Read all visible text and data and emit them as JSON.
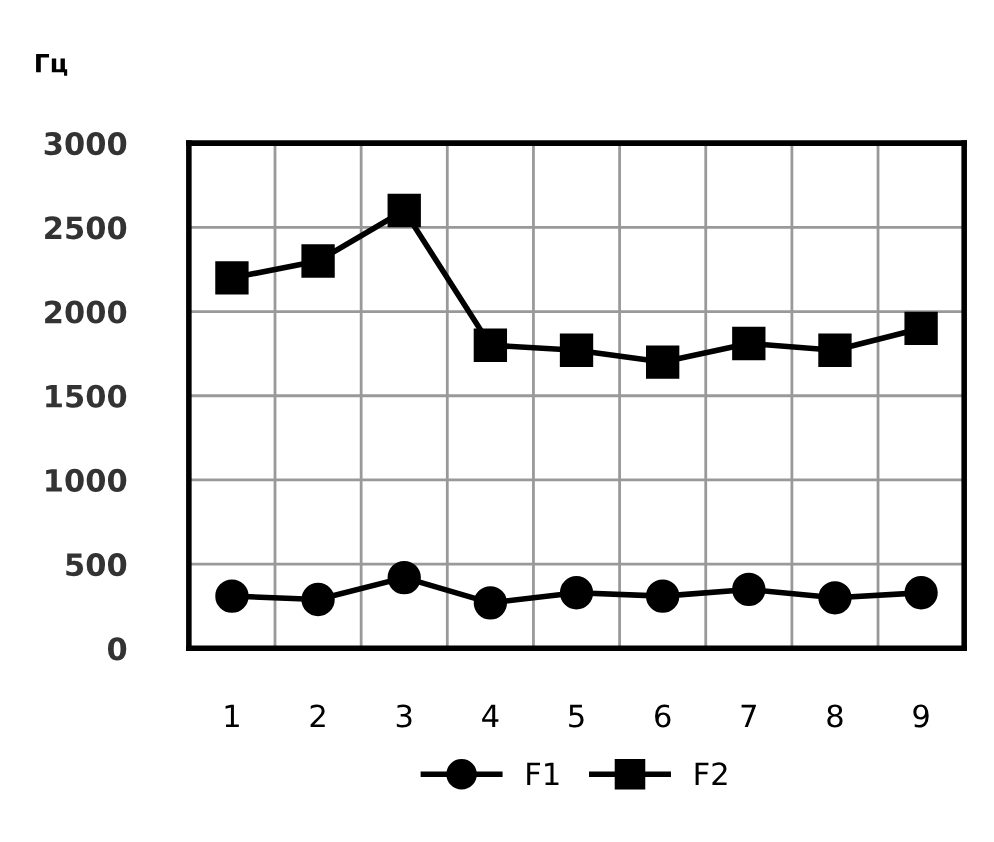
{
  "chart_data": {
    "type": "line",
    "ylabel": "Гц",
    "categories": [
      "1",
      "2",
      "3",
      "4",
      "5",
      "6",
      "7",
      "8",
      "9"
    ],
    "series": [
      {
        "name": "F1",
        "color": "#000000",
        "marker": "circle",
        "values": [
          310,
          290,
          420,
          270,
          330,
          310,
          350,
          300,
          330
        ]
      },
      {
        "name": "F2",
        "color": "#000000",
        "marker": "square",
        "values": [
          2200,
          2300,
          2600,
          1800,
          1770,
          1700,
          1810,
          1770,
          1900
        ]
      }
    ],
    "ylim": [
      0,
      3000
    ],
    "yticks": [
      0,
      500,
      1000,
      1500,
      2000,
      2500,
      3000
    ],
    "grid": true,
    "legend": "bottom",
    "line_style": "solid"
  }
}
